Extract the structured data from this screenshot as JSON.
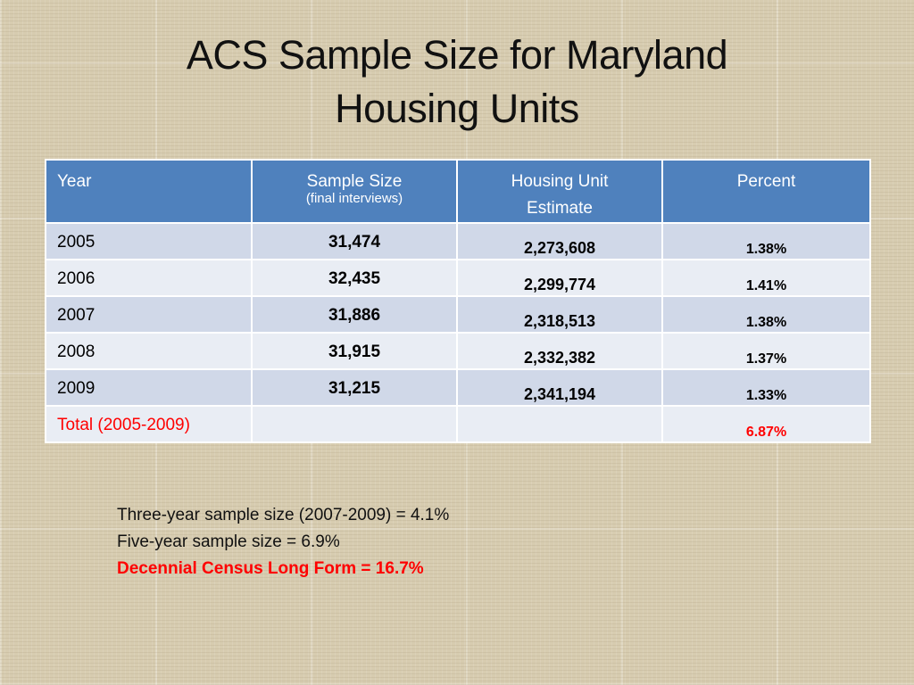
{
  "title": {
    "line1": "ACS Sample Size for Maryland",
    "line2": "Housing Units"
  },
  "table": {
    "headers": {
      "year": "Year",
      "sample_size": "Sample Size",
      "sample_size_sub": "(final interviews)",
      "housing_line1": "Housing Unit",
      "housing_line2": "Estimate",
      "percent": "Percent"
    },
    "rows": [
      {
        "year": "2005",
        "sample": "31,474",
        "housing": "2,273,608",
        "percent": "1.38%"
      },
      {
        "year": "2006",
        "sample": "32,435",
        "housing": "2,299,774",
        "percent": "1.41%"
      },
      {
        "year": "2007",
        "sample": "31,886",
        "housing": "2,318,513",
        "percent": "1.38%"
      },
      {
        "year": "2008",
        "sample": "31,915",
        "housing": "2,332,382",
        "percent": "1.37%"
      },
      {
        "year": "2009",
        "sample": "31,215",
        "housing": "2,341,194",
        "percent": "1.33%"
      }
    ],
    "total": {
      "year": "Total (2005-2009)",
      "sample": "",
      "housing": "",
      "percent": "6.87%"
    }
  },
  "notes": {
    "line1": "Three-year sample size (2007-2009) = 4.1%",
    "line2": "Five-year sample size  = 6.9%",
    "line3": "Decennial Census Long Form = 16.7%"
  },
  "colors": {
    "header_bg": "#4f81bd",
    "row_odd": "#d0d8e8",
    "row_even": "#e9edf4",
    "highlight_red": "#ff0000",
    "background": "#d7ccb0"
  }
}
